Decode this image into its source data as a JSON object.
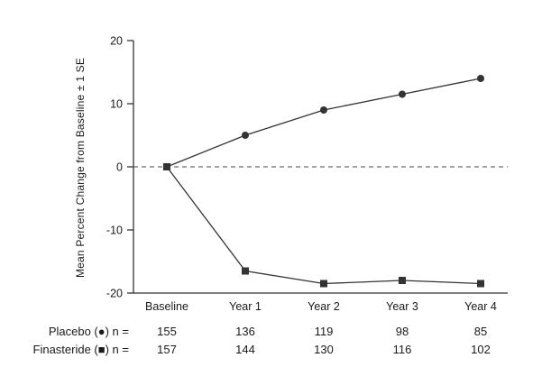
{
  "chart_data": {
    "type": "line",
    "title": "",
    "xlabel": "",
    "ylabel": "Mean Percent Change from Baseline ± 1 SE",
    "categories": [
      "Baseline",
      "Year 1",
      "Year 2",
      "Year 3",
      "Year 4"
    ],
    "series": [
      {
        "name": "Placebo",
        "marker": "circle",
        "values": [
          0,
          5,
          9,
          11.5,
          14
        ]
      },
      {
        "name": "Finasteride",
        "marker": "square",
        "values": [
          0,
          -16.5,
          -18.5,
          -18,
          -18.5
        ]
      }
    ],
    "ylim": [
      -20,
      20
    ],
    "yticks": [
      20,
      10,
      0,
      -10,
      -20
    ],
    "zero_line": "dashed",
    "grid": false,
    "legend_position": "none",
    "line_color": "#333333"
  },
  "counts_table": {
    "rows": [
      {
        "label": "Placebo (●) n =",
        "values": [
          "155",
          "136",
          "119",
          "98",
          "85"
        ]
      },
      {
        "label": "Finasteride (■) n =",
        "values": [
          "157",
          "144",
          "130",
          "116",
          "102"
        ]
      }
    ]
  }
}
